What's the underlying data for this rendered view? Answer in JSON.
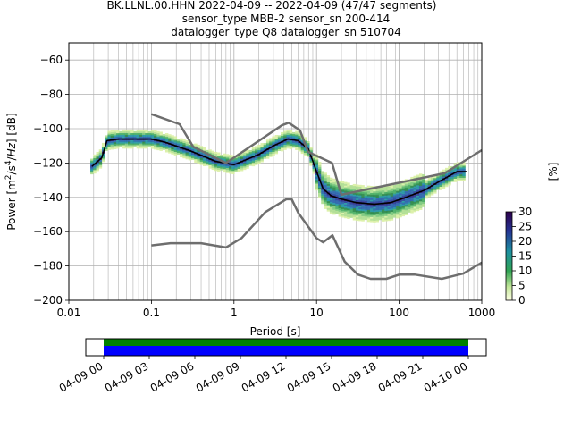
{
  "title_lines": [
    "BK.LLNL.00.HHN   2022-04-09 -- 2022-04-09  (47/47 segments)",
    "sensor_type MBB-2 sensor_sn 200-414",
    "datalogger_type Q8 datalogger_sn 510704"
  ],
  "chart_data": [
    {
      "type": "heatmap",
      "title": "BK.LLNL.00.HHN   2022-04-09 -- 2022-04-09  (47/47 segments)",
      "xlabel": "Period [s]",
      "ylabel": "Power [m²/s⁴/Hz] [dB]",
      "xscale": "log",
      "xlim": [
        0.01,
        1000
      ],
      "ylim": [
        -200,
        -50
      ],
      "x_ticks": [
        0.01,
        0.1,
        1,
        10,
        100,
        1000
      ],
      "x_tick_labels": [
        "0.01",
        "0.1",
        "1",
        "10",
        "100",
        "1000"
      ],
      "y_ticks": [
        -200,
        -180,
        -160,
        -140,
        -120,
        -100,
        -80,
        -60
      ],
      "y_tick_labels": [
        "−200",
        "−180",
        "−160",
        "−140",
        "−120",
        "−100",
        "−80",
        "−60"
      ],
      "grid": true,
      "colorbar": {
        "label": "[%]",
        "range": [
          0,
          30
        ],
        "ticks": [
          0,
          5,
          10,
          15,
          20,
          25,
          30
        ],
        "tick_labels": [
          "0",
          "5",
          "10",
          "15",
          "20",
          "25",
          "30"
        ]
      },
      "series": [
        {
          "role": "mean-psd",
          "color": "#000000",
          "x": [
            0.019,
            0.025,
            0.029,
            0.04,
            0.06,
            0.1,
            0.15,
            0.3,
            0.6,
            1.0,
            2.0,
            3.0,
            4.5,
            6.0,
            8.0,
            10,
            12,
            15,
            20,
            30,
            50,
            80,
            120,
            200,
            300,
            500,
            660
          ],
          "y": [
            -122,
            -117,
            -107,
            -106,
            -106,
            -106,
            -108,
            -113,
            -119,
            -121,
            -115,
            -110,
            -106,
            -107,
            -112,
            -125,
            -135,
            -139,
            -141,
            -143,
            -144,
            -143,
            -140,
            -136,
            -131,
            -125,
            -125
          ]
        },
        {
          "role": "new-high-noise-model",
          "color": "#6e6e6e",
          "x": [
            0.1,
            0.22,
            0.32,
            0.8,
            3.8,
            4.6,
            6.3,
            7.9,
            15.4,
            20,
            354.8,
            1000
          ],
          "y": [
            -91.5,
            -97.4,
            -110.5,
            -120,
            -98,
            -96.5,
            -101,
            -113.5,
            -120,
            -138.5,
            -126,
            -112.5
          ]
        },
        {
          "role": "new-low-noise-model",
          "color": "#6e6e6e",
          "x": [
            0.1,
            0.17,
            0.4,
            0.8,
            1.24,
            2.4,
            4.3,
            5.0,
            6.0,
            10,
            12,
            15.6,
            21.9,
            31.6,
            45,
            70,
            101,
            154,
            328,
            600,
            1000
          ],
          "y": [
            -168,
            -166.7,
            -166.7,
            -169.2,
            -163.7,
            -148.6,
            -141.1,
            -141.1,
            -149,
            -163.8,
            -166.2,
            -162.1,
            -177.5,
            -185,
            -187.5,
            -187.5,
            -185,
            -185,
            -187.5,
            -184.4,
            -178
          ]
        }
      ]
    },
    {
      "type": "timeline",
      "x_tick_labels": [
        "04-09 00",
        "04-09 03",
        "04-09 06",
        "04-09 09",
        "04-09 12",
        "04-09 15",
        "04-09 18",
        "04-09 21",
        "04-10 00"
      ],
      "series": [
        {
          "role": "data-coverage",
          "color": "#008000",
          "start": "04-09 00",
          "end": "04-10 00"
        },
        {
          "role": "psd-coverage",
          "color": "#0000ff",
          "start": "04-09 00",
          "end": "04-10 00"
        }
      ]
    }
  ]
}
